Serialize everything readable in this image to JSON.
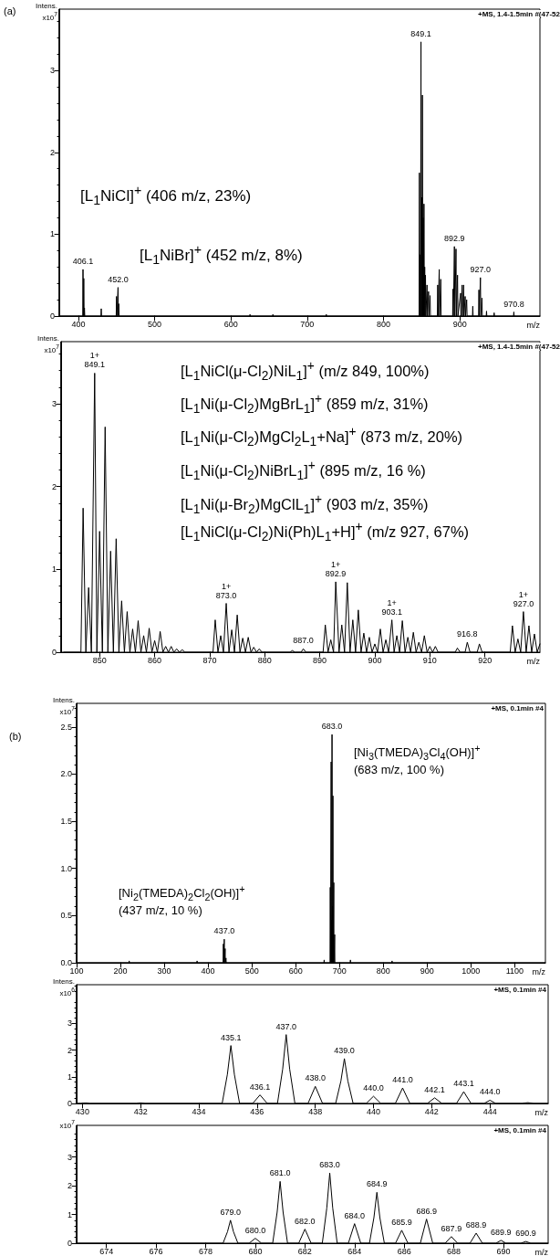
{
  "chart_data": [
    {
      "type": "line",
      "title": "(a)",
      "xlabel": "m/z",
      "ylabel": "Intens. x10$^{7}$",
      "color": "#000000",
      "xlim": [
        375,
        1005
      ],
      "ylim": [
        0,
        3.75
      ],
      "xticks": [
        400,
        500,
        600,
        700,
        800,
        900
      ],
      "yticks": [
        0,
        1,
        2,
        3
      ],
      "x": [
        375,
        405.75,
        406.1,
        406.6,
        407.1,
        407.6,
        408,
        408.4,
        429.6,
        430,
        430.4,
        449.6,
        450,
        450.5,
        452,
        452.5,
        453,
        453.4,
        624.6,
        625,
        625.4,
        654.6,
        655,
        655.4,
        724.6,
        725,
        725.4,
        846.6,
        847,
        847.5,
        848,
        848.5,
        849.1,
        849.5,
        850,
        850.5,
        851,
        851.5,
        852,
        852.5,
        853,
        853.5,
        854,
        854.5,
        855,
        855.5,
        857,
        857.5,
        859,
        859.5,
        861,
        861.5,
        870.6,
        871,
        871.5,
        873,
        873.5,
        875,
        875.5,
        890.6,
        891,
        891.5,
        892.9,
        893.5,
        895,
        895.5,
        897,
        897.5,
        901,
        901.5,
        903,
        903.5,
        905,
        905.5,
        907,
        907.5,
        909,
        909.5,
        916.6,
        917,
        917.4,
        924.6,
        925,
        925.5,
        927,
        927.5,
        929,
        929.5,
        934.6,
        935,
        935.4,
        944.6,
        945,
        945.4,
        970.4,
        970.8,
        971.2,
        1005
      ],
      "values": [
        0,
        0,
        0.57,
        0,
        0.46,
        0,
        0.1,
        0,
        0,
        0.09,
        0,
        0,
        0.24,
        0,
        0.35,
        0,
        0.15,
        0,
        0,
        0.02,
        0,
        0,
        0.02,
        0,
        0,
        0.02,
        0,
        0,
        1.75,
        0,
        0.75,
        0,
        3.35,
        0,
        1.45,
        0,
        2.7,
        0,
        1.2,
        0,
        1.37,
        0,
        0.6,
        0,
        0.5,
        0,
        0.38,
        0,
        0.3,
        0,
        0.25,
        0,
        0,
        0.38,
        0,
        0.57,
        0,
        0.45,
        0,
        0,
        0.33,
        0,
        0.85,
        0,
        0.82,
        0,
        0.5,
        0,
        0.28,
        0,
        0.38,
        0,
        0.38,
        0,
        0.24,
        0,
        0.2,
        0,
        0,
        0.12,
        0,
        0,
        0.32,
        0,
        0.47,
        0,
        0.22,
        0,
        0,
        0.06,
        0,
        0,
        0.04,
        0,
        0,
        0.05,
        0,
        0
      ],
      "annotations": [
        "+MS, 1.4-1.5min #(47-52",
        "[L$_{1}$NiCl]$^{+}$ (406 m/z, 23%)",
        "[L$_{1}$NiBr]$^{+}$ (452 m/z, 8%)",
        {
          "text": "406.1",
          "x": 406.1,
          "y": 0.57
        },
        {
          "text": "452.0",
          "x": 452,
          "y": 0.35
        },
        {
          "text": "849.1",
          "x": 849.1,
          "y": 3.35
        },
        {
          "text": "892.9",
          "x": 892.9,
          "y": 0.85
        },
        {
          "text": "927.0",
          "x": 927,
          "y": 0.47
        },
        {
          "text": "970.8",
          "x": 970.8,
          "y": 0.05
        }
      ]
    },
    {
      "type": "line",
      "xlabel": "m/z",
      "ylabel": "Intens. x10$^{7}$",
      "color": "#000000",
      "xlim": [
        843,
        930
      ],
      "ylim": [
        0,
        3.75
      ],
      "xticks": [
        850,
        860,
        870,
        880,
        890,
        900,
        910,
        920
      ],
      "yticks": [
        0,
        1,
        2,
        3
      ],
      "x": [
        843.5,
        846.6,
        847,
        847.5,
        848,
        848.5,
        849.1,
        849.5,
        850,
        850.5,
        851,
        851.5,
        852,
        852.5,
        853,
        853.5,
        854,
        854.5,
        855,
        855.5,
        856,
        856.5,
        857,
        857.5,
        858,
        858.5,
        859,
        859.5,
        860,
        860.5,
        861,
        861.5,
        862,
        862.5,
        863,
        863.5,
        864,
        864.5,
        865,
        865.5,
        870.6,
        871,
        871.5,
        872,
        872.5,
        873,
        873.5,
        874,
        874.5,
        875,
        875.5,
        876,
        876.5,
        877,
        877.5,
        878,
        878.5,
        879,
        879.5,
        884.6,
        885,
        885.5,
        886.6,
        887,
        887.5,
        890.6,
        891,
        891.5,
        892,
        892.5,
        892.9,
        893.5,
        894,
        894.5,
        895,
        895.5,
        896,
        896.5,
        897,
        897.5,
        898,
        898.5,
        899,
        899.5,
        900,
        900.5,
        901,
        901.5,
        902,
        902.5,
        903.1,
        903.5,
        904,
        904.5,
        905,
        905.5,
        906,
        906.5,
        907,
        907.5,
        908,
        908.5,
        909,
        909.5,
        910,
        910.5,
        911,
        911.5,
        914.6,
        915,
        915.5,
        916.4,
        916.8,
        917.3,
        918.6,
        919,
        919.5,
        924.6,
        925,
        925.5,
        926,
        926.5,
        927,
        927.5,
        928,
        928.5,
        929,
        929.5,
        930
      ],
      "values": [
        0,
        0,
        1.74,
        0,
        0.78,
        0,
        3.37,
        0,
        1.46,
        0,
        2.72,
        0,
        1.22,
        0,
        1.37,
        0,
        0.62,
        0,
        0.49,
        0,
        0.28,
        0,
        0.38,
        0,
        0.2,
        0,
        0.29,
        0,
        0.14,
        0,
        0.25,
        0,
        0.07,
        0,
        0.07,
        0,
        0.04,
        0,
        0.03,
        0,
        0,
        0.39,
        0,
        0.2,
        0,
        0.59,
        0,
        0.27,
        0,
        0.45,
        0,
        0.17,
        0,
        0.18,
        0,
        0.06,
        0,
        0.04,
        0,
        0,
        0.02,
        0,
        0,
        0.04,
        0,
        0,
        0.33,
        0,
        0.15,
        0,
        0.85,
        0,
        0.33,
        0,
        0.84,
        0,
        0.39,
        0,
        0.51,
        0,
        0.23,
        0,
        0.18,
        0,
        0.1,
        0,
        0.28,
        0,
        0.15,
        0,
        0.39,
        0,
        0.2,
        0,
        0.38,
        0,
        0.18,
        0,
        0.24,
        0,
        0.12,
        0,
        0.2,
        0,
        0.07,
        0,
        0.07,
        0,
        0,
        0.05,
        0,
        0,
        0.12,
        0,
        0,
        0.1,
        0,
        0,
        0.32,
        0,
        0.16,
        0,
        0.49,
        0,
        0.32,
        0,
        0.22,
        0,
        0.1
      ],
      "annotations": [
        "+MS, 1.4-1.5min #(47-52",
        "[L$_{1}$NiCl(μ-Cl$_{2}$)NiL$_{1}$]$^{+}$ (m/z 849, 100%)",
        "[L$_{1}$Ni(μ-Cl$_{2}$)MgBrL$_{1}$]$^{+}$ (859 m/z, 31%)",
        "[L$_{1}$Ni(μ-Cl$_{2}$)MgCl$_{2}$L$_{1}$+Na]$^{+}$ (873 m/z, 20%)",
        "[L$_{1}$Ni(μ-Cl$_{2}$)NiBrL$_{1}$]$^{+}$ (895 m/z, 16 %)",
        "[L$_{1}$Ni(μ-Br$_{2}$)MgClL$_{1}$]$^{+}$ (903 m/z, 35%)",
        "[L$_{1}$NiCl(μ-Cl$_{2}$)Ni(Ph)L$_{1}$+H]$^{+}$ (m/z 927, 67%)",
        {
          "text": "1+\n849.1",
          "x": 849.1,
          "y": 3.37
        },
        {
          "text": "1+\n873.0",
          "x": 873,
          "y": 0.59
        },
        {
          "text": "887.0",
          "x": 887,
          "y": 0.04
        },
        {
          "text": "1+\n892.9",
          "x": 892.9,
          "y": 0.85
        },
        {
          "text": "1+\n903.1",
          "x": 903.1,
          "y": 0.39
        },
        {
          "text": "916.8",
          "x": 916.8,
          "y": 0.12
        },
        {
          "text": "1+\n927.0",
          "x": 927,
          "y": 0.49
        }
      ]
    },
    {
      "type": "line",
      "title": "(b)",
      "xlabel": "m/z",
      "ylabel": "Intens. x10$^{7}$",
      "color": "#000000",
      "xlim": [
        100,
        1170
      ],
      "ylim": [
        0,
        2.75
      ],
      "xticks": [
        100,
        200,
        300,
        400,
        500,
        600,
        700,
        800,
        900,
        1000,
        1100
      ],
      "yticks": [
        {
          "value": 0,
          "label": "0.0"
        },
        {
          "value": 0.5,
          "label": "0.5"
        },
        {
          "value": 1,
          "label": "1.0"
        },
        {
          "value": 1.5,
          "label": "1.5"
        },
        {
          "value": 2,
          "label": "2.0"
        },
        {
          "value": 2.5,
          "label": "2.5"
        }
      ],
      "x": [
        100,
        219.5,
        220,
        220.5,
        374.5,
        375,
        375.5,
        434.6,
        435,
        435.5,
        437,
        437.5,
        439,
        439.5,
        441,
        441.5,
        664.5,
        665,
        665.5,
        678.6,
        679,
        679.5,
        681,
        681.5,
        682,
        682.5,
        683,
        683.5,
        684,
        684.5,
        685,
        685.5,
        687,
        687.5,
        689,
        689.5,
        724.5,
        725,
        725.5,
        819.5,
        820,
        820.5,
        1170
      ],
      "values": [
        0,
        0,
        0.02,
        0,
        0,
        0.02,
        0,
        0,
        0.2,
        0,
        0.25,
        0,
        0.15,
        0,
        0.05,
        0,
        0,
        0.03,
        0,
        0,
        0.8,
        0,
        2.13,
        0,
        0.45,
        0,
        2.42,
        0,
        0.6,
        0,
        1.77,
        0,
        0.85,
        0,
        0.3,
        0,
        0,
        0.03,
        0,
        0,
        0.02,
        0,
        0
      ],
      "annotations": [
        "+MS, 0.1min #4",
        "[Ni$_{3}$(TMEDA)$_{3}$Cl$_{4}$(OH)]$^{+}$\n(683 m/z, 100 %)",
        "[Ni$_{2}$(TMEDA)$_{2}$Cl$_{2}$(OH)]$^{+}$\n(437 m/z, 10 %)",
        {
          "text": "683.0",
          "x": 683,
          "y": 2.42
        },
        {
          "text": "437.0",
          "x": 437,
          "y": 0.25
        }
      ]
    },
    {
      "type": "line",
      "xlabel": "m/z",
      "ylabel": "Intens. x10$^{6}$",
      "color": "#000000",
      "xlim": [
        429.8,
        446
      ],
      "ylim": [
        0,
        4.45
      ],
      "xticks": [
        430,
        432,
        434,
        436,
        438,
        440,
        442,
        444
      ],
      "yticks": [
        0,
        1,
        2,
        3
      ],
      "x": [
        429.8,
        429.95,
        430.1,
        430.25,
        431.85,
        432,
        432.15,
        434.8,
        434.98,
        435.1,
        435.22,
        435.4,
        435.85,
        436.1,
        436.35,
        436.7,
        436.88,
        437,
        437.12,
        437.3,
        437.75,
        438,
        438.25,
        438.7,
        438.88,
        439,
        439.12,
        439.3,
        439.75,
        440,
        440.25,
        440.75,
        441,
        441.25,
        441.85,
        442.1,
        442.35,
        442.85,
        443.1,
        443.35,
        443.8,
        444,
        444.2,
        445.1,
        445.3,
        445.5,
        446
      ],
      "values": [
        0,
        0,
        0.02,
        0,
        0,
        0.02,
        0,
        0,
        1.09,
        2.17,
        1.09,
        0,
        0,
        0.32,
        0,
        0,
        1.29,
        2.58,
        1.29,
        0,
        0,
        0.64,
        0,
        0,
        0.84,
        1.68,
        0.84,
        0,
        0,
        0.27,
        0,
        0,
        0.58,
        0,
        0,
        0.21,
        0,
        0,
        0.44,
        0,
        0,
        0.12,
        0,
        0,
        0.03,
        0,
        0
      ],
      "annotations": [
        "+MS, 0.1min #4",
        {
          "text": "435.1",
          "x": 435.1,
          "y": 2.17
        },
        {
          "text": "436.1",
          "x": 436.1,
          "y": 0.32
        },
        {
          "text": "437.0",
          "x": 437,
          "y": 2.58
        },
        {
          "text": "438.0",
          "x": 438,
          "y": 0.64
        },
        {
          "text": "439.0",
          "x": 439,
          "y": 1.68
        },
        {
          "text": "440.0",
          "x": 440,
          "y": 0.27
        },
        {
          "text": "441.0",
          "x": 441,
          "y": 0.58
        },
        {
          "text": "442.1",
          "x": 442.1,
          "y": 0.21
        },
        {
          "text": "443.1",
          "x": 443.1,
          "y": 0.44
        },
        {
          "text": "444.0",
          "x": 444,
          "y": 0.12
        }
      ]
    },
    {
      "type": "line",
      "xlabel": "m/z",
      "ylabel": "x10$^{7}$",
      "color": "#000000",
      "xlim": [
        672.8,
        691.8
      ],
      "ylim": [
        0,
        4.1
      ],
      "xticks": [
        674,
        676,
        678,
        680,
        682,
        684,
        686,
        688,
        690
      ],
      "yticks": [
        0,
        1,
        2,
        3
      ],
      "x": [
        672.8,
        678.7,
        678.88,
        679,
        679.12,
        679.3,
        679.75,
        680,
        680.25,
        680.7,
        680.88,
        681,
        681.12,
        681.3,
        681.75,
        682,
        682.25,
        682.7,
        682.88,
        683,
        683.12,
        683.3,
        683.75,
        684,
        684.25,
        684.6,
        684.78,
        684.9,
        685.02,
        685.2,
        685.65,
        685.9,
        686.15,
        686.65,
        686.9,
        687.15,
        687.65,
        687.9,
        688.15,
        688.65,
        688.9,
        689.15,
        689.7,
        689.9,
        690.1,
        690.7,
        690.9,
        691.1,
        691.8
      ],
      "values": [
        0,
        0,
        0.4,
        0.8,
        0.4,
        0,
        0,
        0.17,
        0,
        0,
        1.08,
        2.15,
        1.08,
        0,
        0,
        0.49,
        0,
        0,
        1.22,
        2.44,
        1.22,
        0,
        0,
        0.68,
        0,
        0,
        0.89,
        1.77,
        0.89,
        0,
        0,
        0.45,
        0,
        0,
        0.84,
        0,
        0,
        0.23,
        0,
        0,
        0.35,
        0,
        0,
        0.1,
        0,
        0,
        0.06,
        0,
        0
      ],
      "annotations": [
        "+MS, 0.1min #4",
        {
          "text": "679.0",
          "x": 679,
          "y": 0.8
        },
        {
          "text": "680.0",
          "x": 680,
          "y": 0.17
        },
        {
          "text": "681.0",
          "x": 681,
          "y": 2.15
        },
        {
          "text": "682.0",
          "x": 682,
          "y": 0.49
        },
        {
          "text": "683.0",
          "x": 683,
          "y": 2.44
        },
        {
          "text": "684.0",
          "x": 684,
          "y": 0.68
        },
        {
          "text": "684.9",
          "x": 684.9,
          "y": 1.77
        },
        {
          "text": "685.9",
          "x": 685.9,
          "y": 0.45
        },
        {
          "text": "686.9",
          "x": 686.9,
          "y": 0.84
        },
        {
          "text": "687.9",
          "x": 687.9,
          "y": 0.23
        },
        {
          "text": "688.9",
          "x": 688.9,
          "y": 0.35
        },
        {
          "text": "689.9",
          "x": 689.9,
          "y": 0.1
        },
        {
          "text": "690.9",
          "x": 690.9,
          "y": 0.06
        }
      ]
    }
  ]
}
